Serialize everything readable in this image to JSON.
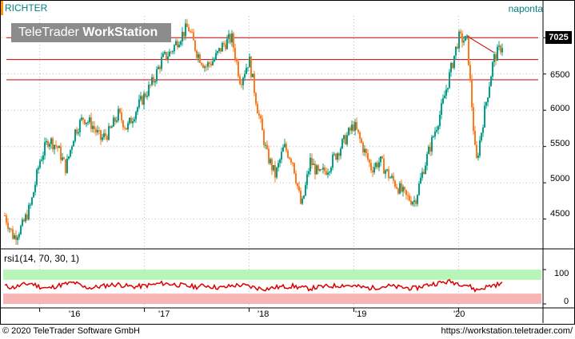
{
  "header": {
    "symbol": "RICHTER",
    "frequency": "naponta",
    "logo_light": "TeleTrader ",
    "logo_bold": "WorkStation"
  },
  "colors": {
    "up_candle": "#00a08a",
    "down_candle": "#ff7a1a",
    "resistance_line": "#cc0000",
    "rsi_line": "#dd0000",
    "rsi_overbought_band": "#b8f5b8",
    "rsi_oversold_band": "#f8b5b5",
    "price_tag_bg": "#000000"
  },
  "last_price": "7025",
  "rsi_label": "rsi1(14, 70, 30, 1)",
  "footer": {
    "copyright": "© 2020 TeleTrader Software GmbH",
    "url": "https://workstation.teletrader.com/"
  },
  "chart_data": [
    {
      "type": "candlestick",
      "title": "RICHTER",
      "x_tick_labels": [
        "'16",
        "'17",
        "'18",
        "'19",
        "'20"
      ],
      "y_tick_labels": [
        "4500",
        "5000",
        "5500",
        "6000",
        "6500",
        "7000"
      ],
      "ylim": [
        4100,
        7300
      ],
      "grid": true,
      "horizontal_lines": [
        7000,
        6700,
        6420
      ],
      "trend_line": [
        {
          "x": "2020-02",
          "y": 7020
        },
        {
          "x": "2020-05",
          "y": 6800
        }
      ],
      "last_value": 7025,
      "approx_close_series": {
        "x": [
          "2015-09",
          "2015-10",
          "2015-11",
          "2015-12",
          "2016-01",
          "2016-02",
          "2016-03",
          "2016-04",
          "2016-05",
          "2016-06",
          "2016-07",
          "2016-08",
          "2016-09",
          "2016-10",
          "2016-11",
          "2016-12",
          "2017-01",
          "2017-02",
          "2017-03",
          "2017-04",
          "2017-05",
          "2017-06",
          "2017-07",
          "2017-08",
          "2017-09",
          "2017-10",
          "2017-11",
          "2017-12",
          "2018-01",
          "2018-02",
          "2018-03",
          "2018-04",
          "2018-05",
          "2018-06",
          "2018-07",
          "2018-08",
          "2018-09",
          "2018-10",
          "2018-11",
          "2018-12",
          "2019-01",
          "2019-02",
          "2019-03",
          "2019-04",
          "2019-05",
          "2019-06",
          "2019-07",
          "2019-08",
          "2019-09",
          "2019-10",
          "2019-11",
          "2019-12",
          "2020-01",
          "2020-02",
          "2020-03",
          "2020-04",
          "2020-05",
          "2020-06"
        ],
        "values": [
          4550,
          4250,
          4400,
          4700,
          5300,
          5600,
          5500,
          5200,
          5700,
          5900,
          5800,
          5600,
          5700,
          5950,
          5750,
          6000,
          6200,
          6400,
          6700,
          6800,
          7000,
          7150,
          6800,
          6600,
          6700,
          6900,
          7000,
          6400,
          6700,
          6000,
          5400,
          5100,
          5500,
          5300,
          4650,
          5300,
          5100,
          5200,
          5400,
          5600,
          5800,
          5500,
          5200,
          5300,
          5100,
          4950,
          4800,
          4750,
          5200,
          5600,
          6000,
          6500,
          7000,
          6950,
          5250,
          6000,
          6700,
          6900
        ]
      }
    },
    {
      "type": "line",
      "title": "rsi1(14, 70, 30, 1)",
      "y_tick_labels": [
        "100",
        "0"
      ],
      "ylim": [
        0,
        100
      ],
      "bands": [
        {
          "name": "overbought",
          "from": 70,
          "to": 100
        },
        {
          "name": "oversold",
          "from": 0,
          "to": 30
        }
      ],
      "approx_values": [
        52,
        48,
        55,
        60,
        50,
        45,
        53,
        58,
        62,
        49,
        47,
        51,
        55,
        57,
        52,
        50,
        53,
        56,
        60,
        58,
        55,
        52,
        50,
        54,
        49,
        47,
        53,
        55,
        51,
        46,
        44,
        48,
        50,
        52,
        47,
        45,
        49,
        51,
        53,
        55,
        52,
        48,
        46,
        50,
        52,
        49,
        47,
        45,
        53,
        58,
        62,
        65,
        60,
        55,
        40,
        48,
        55,
        58
      ]
    }
  ]
}
